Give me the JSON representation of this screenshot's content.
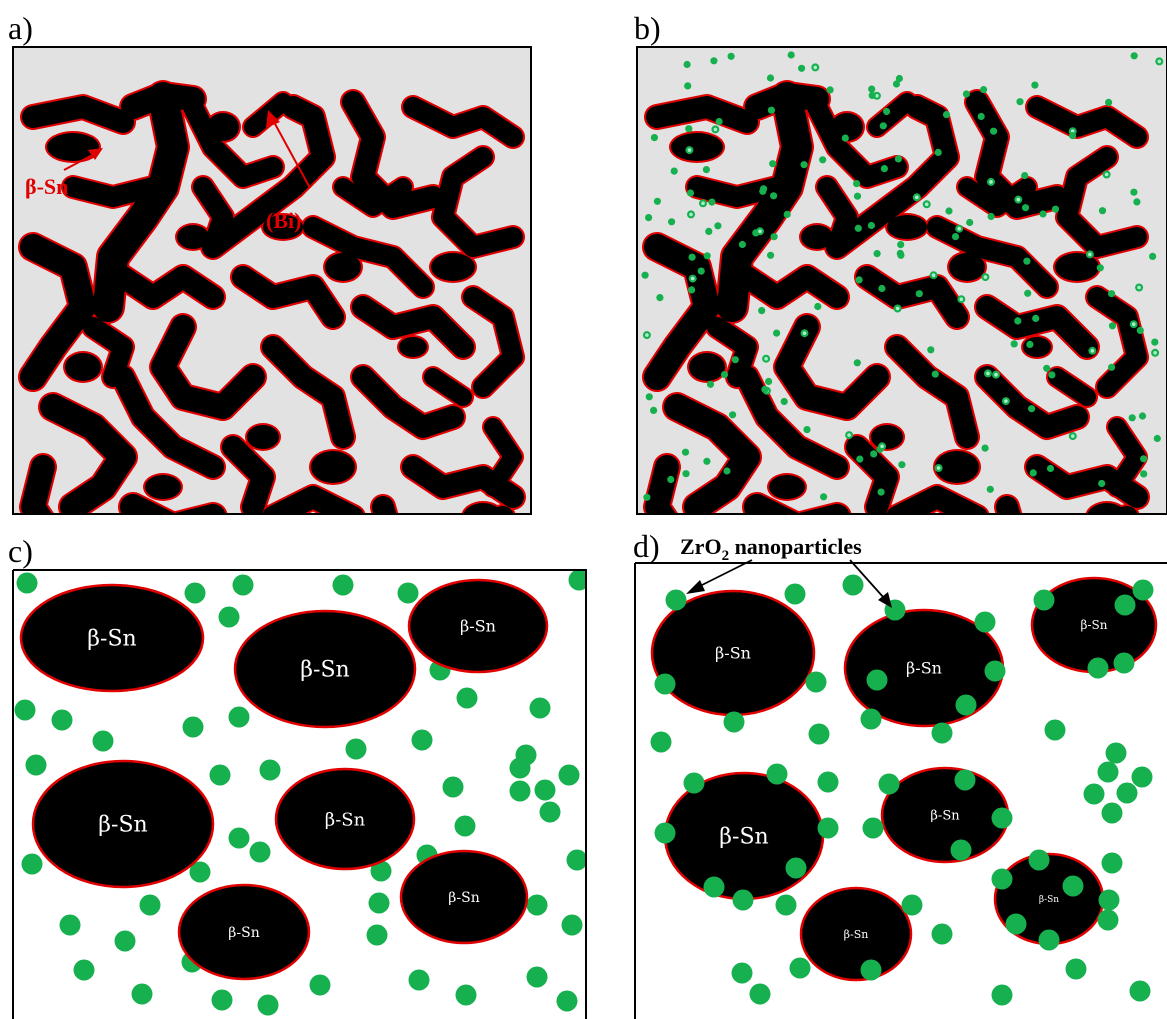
{
  "panels": [
    {
      "id": "a",
      "label": "a)"
    },
    {
      "id": "b",
      "label": "b)"
    },
    {
      "id": "c",
      "label": "c)"
    },
    {
      "id": "d",
      "label": "d)"
    }
  ],
  "annotations": {
    "beta_sn": "β-Sn",
    "bi": "(Bi)",
    "zro2_prefix": "ZrO",
    "zro2_subscript": "2",
    "zro2_suffix": " nanoparticles"
  },
  "grain_label": "β-Sn",
  "colors": {
    "sn_phase": "#000000",
    "bi_phase": "#e2e2e2",
    "interface": "#e00000",
    "nanoparticle": "#16b04e",
    "nanoparticle_cluster": "#a8efd0",
    "frame": "#000000"
  }
}
